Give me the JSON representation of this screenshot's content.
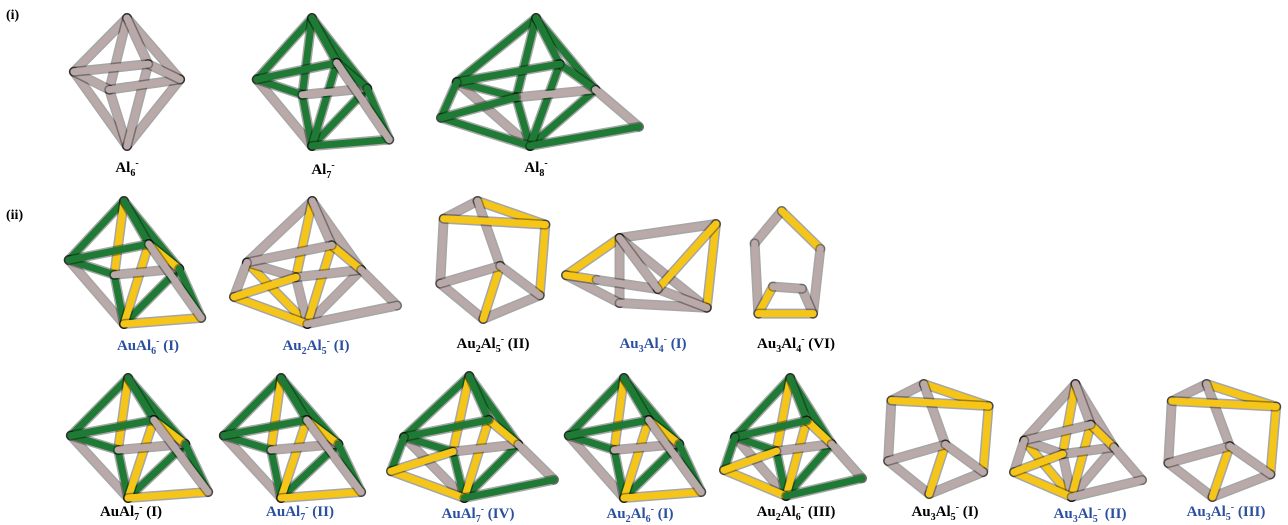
{
  "sections": [
    {
      "label": "(i)"
    },
    {
      "label": "(ii)"
    }
  ],
  "colors": {
    "Al": "#b9a9a9",
    "Au": "#f5c518",
    "green": "#1e7a34",
    "caption_black": "#000000",
    "caption_blue": "#2a4fa0"
  },
  "clusters": [
    {
      "id": "al6",
      "base": "Al",
      "sub": "6",
      "sup": "-",
      "suffix": "",
      "color": "black",
      "frame": "Al"
    },
    {
      "id": "al7",
      "base": "Al",
      "sub": "7",
      "sup": "-",
      "suffix": "",
      "color": "black",
      "frame": "green"
    },
    {
      "id": "al8",
      "base": "Al",
      "sub": "8",
      "sup": "-",
      "suffix": "",
      "color": "black",
      "frame": "green"
    },
    {
      "id": "aual6-i",
      "base": "AuAl",
      "sub": "6",
      "sup": "-",
      "suffix": " (I)",
      "color": "blue",
      "frame": "green"
    },
    {
      "id": "au2al5-i",
      "base": "Au2Al",
      "sub": "5",
      "sup": "-",
      "suffix": " (I)",
      "color": "blue",
      "frame": "Al"
    },
    {
      "id": "au2al5-ii",
      "base": "Au2Al",
      "sub": "5",
      "sup": "-",
      "suffix": " (II)",
      "color": "black",
      "frame": "Al"
    },
    {
      "id": "au3al4-i",
      "base": "Au3Al",
      "sub": "4",
      "sup": "-",
      "suffix": " (I)",
      "color": "blue",
      "frame": "Al"
    },
    {
      "id": "au3al4-vi",
      "base": "Au3Al",
      "sub": "4",
      "sup": "-",
      "suffix": " (VI)",
      "color": "black",
      "frame": "Al"
    },
    {
      "id": "aual7-i",
      "base": "AuAl",
      "sub": "7",
      "sup": "-",
      "suffix": " (I)",
      "color": "black",
      "frame": "green"
    },
    {
      "id": "aual7-ii",
      "base": "AuAl",
      "sub": "7",
      "sup": "-",
      "suffix": " (II)",
      "color": "blue",
      "frame": "green"
    },
    {
      "id": "aual7-iv",
      "base": "AuAl",
      "sub": "7",
      "sup": "-",
      "suffix": " (IV)",
      "color": "blue",
      "frame": "green"
    },
    {
      "id": "au2al6-i",
      "base": "Au2Al",
      "sub": "6",
      "sup": "-",
      "suffix": " (I)",
      "color": "blue",
      "frame": "green"
    },
    {
      "id": "au2al6-iii",
      "base": "Au2Al",
      "sub": "6",
      "sup": "-",
      "suffix": " (III)",
      "color": "black",
      "frame": "green"
    },
    {
      "id": "au3al5-i",
      "base": "Au3Al",
      "sub": "5",
      "sup": "-",
      "suffix": " (I)",
      "color": "black",
      "frame": "Al"
    },
    {
      "id": "au3al5-ii",
      "base": "Au3Al",
      "sub": "5",
      "sup": "-",
      "suffix": " (II)",
      "color": "blue",
      "frame": "Al"
    },
    {
      "id": "au3al5-iii",
      "base": "Au3Al",
      "sub": "5",
      "sup": "-",
      "suffix": " (III)",
      "color": "blue",
      "frame": "Al"
    }
  ]
}
